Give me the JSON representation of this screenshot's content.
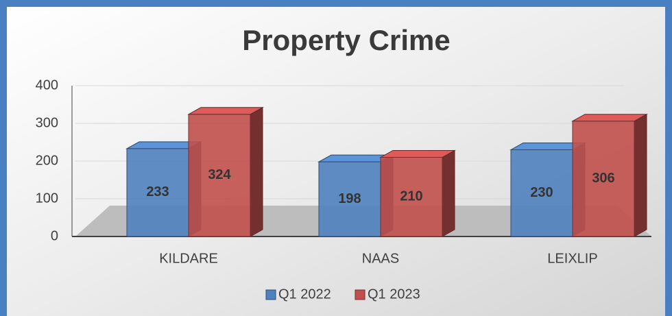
{
  "chart_data": {
    "type": "bar3d",
    "title": "Property Crime",
    "categories": [
      "KILDARE",
      "NAAS",
      "LEIXLIP"
    ],
    "series": [
      {
        "name": "Q1 2022",
        "color": "#4f81bd",
        "values": [
          233,
          198,
          230
        ]
      },
      {
        "name": "Q1 2023",
        "color": "#c0504d",
        "values": [
          324,
          210,
          306
        ]
      }
    ],
    "ylim": [
      0,
      400
    ],
    "yticks": [
      0,
      100,
      200,
      300,
      400
    ],
    "grid": true,
    "legend": "bottom"
  }
}
